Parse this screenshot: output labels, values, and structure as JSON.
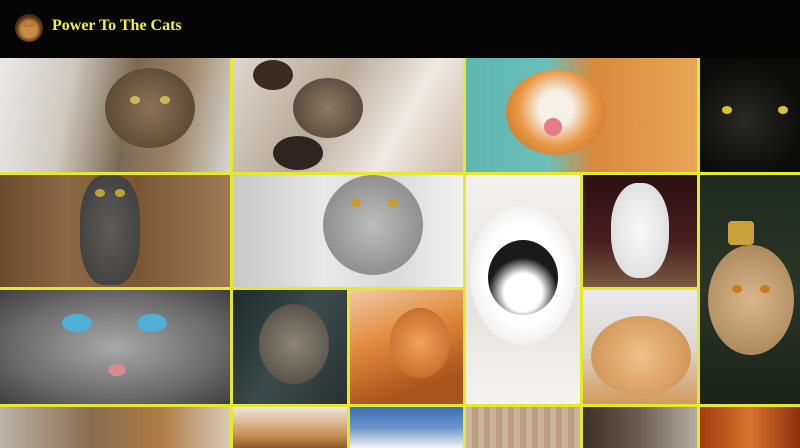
{
  "header": {
    "title": "Power To The Cats",
    "logo_icon": "cat-avatar-icon"
  },
  "colors": {
    "header_bg": "#050505",
    "title": "#f4f52c",
    "grid_gap": "#e4ea2a"
  },
  "gallery": {
    "photos": [
      "tabby-cat-lying-photo",
      "cats-playing-paws-photo",
      "orange-cat-licking-photo",
      "black-cat-eyes-photo",
      "gray-kitten-standing-photo",
      "silver-tabby-cat-photo",
      "black-white-cat-in-tube-photo",
      "white-kitten-photo",
      "cat-with-crown-photo",
      "blue-eyed-cat-closeup-photo",
      "tabby-cat-sniffing-photo",
      "ginger-kitten-playing-photo",
      "ginger-cat-sleeping-photo",
      "fluffy-cat-photo",
      "cat-with-mushrooms-photo",
      "white-cat-photo",
      "knitted-blanket-cat-photo",
      "tabby-kitten-photo",
      "orange-autumn-cat-photo"
    ]
  }
}
